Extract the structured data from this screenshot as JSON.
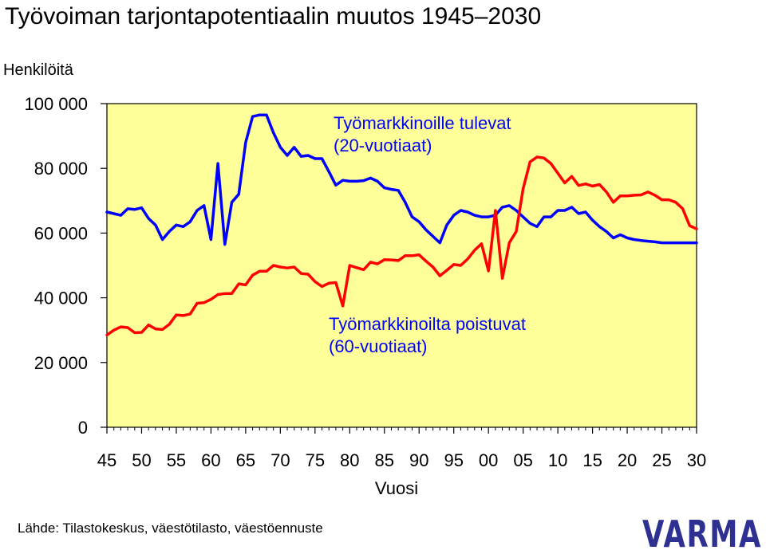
{
  "chart_data": {
    "type": "line",
    "title": "Työvoiman tarjontapotentiaalin muutos 1945–2030",
    "ylabel": "Henkilöitä",
    "xlabel": "Vuosi",
    "ylim": [
      0,
      100000
    ],
    "xlim": [
      1945,
      2030
    ],
    "y_ticks": [
      0,
      20000,
      40000,
      60000,
      80000,
      100000
    ],
    "y_tick_labels": [
      "0",
      "20 000",
      "40 000",
      "60 000",
      "80 000",
      "100 000"
    ],
    "x_ticks": [
      1945,
      1950,
      1955,
      1960,
      1965,
      1970,
      1975,
      1980,
      1985,
      1990,
      1995,
      2000,
      2005,
      2010,
      2015,
      2020,
      2025,
      2030
    ],
    "x_tick_labels": [
      "45",
      "50",
      "55",
      "60",
      "65",
      "70",
      "75",
      "80",
      "85",
      "90",
      "95",
      "00",
      "05",
      "10",
      "15",
      "20",
      "25",
      "30"
    ],
    "grid": false,
    "plot_background": "#FFFF99",
    "series": [
      {
        "name": "Työmarkkinoille tulevat (20-vuotiaat)",
        "label_lines": [
          "Työmarkkinoille tulevat",
          "(20-vuotiaat)"
        ],
        "color": "#0000FF",
        "label_color": "#0000FF",
        "label_position": "top-right",
        "x": [
          1945,
          1946,
          1947,
          1948,
          1949,
          1950,
          1951,
          1952,
          1953,
          1954,
          1955,
          1956,
          1957,
          1958,
          1959,
          1960,
          1961,
          1962,
          1963,
          1964,
          1965,
          1966,
          1967,
          1968,
          1969,
          1970,
          1971,
          1972,
          1973,
          1974,
          1975,
          1976,
          1977,
          1978,
          1979,
          1980,
          1981,
          1982,
          1983,
          1984,
          1985,
          1986,
          1987,
          1988,
          1989,
          1990,
          1991,
          1992,
          1993,
          1994,
          1995,
          1996,
          1997,
          1998,
          1999,
          2000,
          2001,
          2002,
          2003,
          2004,
          2005,
          2006,
          2007,
          2008,
          2009,
          2010,
          2011,
          2012,
          2013,
          2014,
          2015,
          2016,
          2017,
          2018,
          2019,
          2020,
          2021,
          2022,
          2023,
          2024,
          2025,
          2026,
          2027,
          2028,
          2029,
          2030
        ],
        "values": [
          66500,
          66000,
          65500,
          67500,
          67300,
          67800,
          64500,
          62500,
          58000,
          60500,
          62500,
          62000,
          63500,
          67000,
          68500,
          58000,
          81500,
          56500,
          69500,
          72000,
          88000,
          96000,
          96500,
          96500,
          91000,
          86500,
          84000,
          86500,
          83700,
          84000,
          83000,
          83000,
          79000,
          74800,
          76300,
          76000,
          76000,
          76200,
          77000,
          76000,
          74000,
          73500,
          73200,
          69500,
          65000,
          63500,
          61000,
          59000,
          57000,
          62500,
          65500,
          67000,
          66500,
          65500,
          65000,
          65000,
          65500,
          68000,
          68500,
          67000,
          65000,
          63000,
          62000,
          65000,
          65000,
          67000,
          67000,
          68000,
          66000,
          66500,
          64000,
          62000,
          60500,
          58500,
          59500,
          58500,
          58000,
          57700,
          57500,
          57300,
          57000,
          57000,
          57000,
          57000,
          57000,
          57000
        ]
      },
      {
        "name": "Työmarkkinoilta poistuvat (60-vuotiaat)",
        "label_lines": [
          "Työmarkkinoilta poistuvat",
          "(60-vuotiaat)"
        ],
        "color": "#FF0000",
        "label_color": "#0000FF",
        "label_position": "center",
        "x": [
          1945,
          1946,
          1947,
          1948,
          1949,
          1950,
          1951,
          1952,
          1953,
          1954,
          1955,
          1956,
          1957,
          1958,
          1959,
          1960,
          1961,
          1962,
          1963,
          1964,
          1965,
          1966,
          1967,
          1968,
          1969,
          1970,
          1971,
          1972,
          1973,
          1974,
          1975,
          1976,
          1977,
          1978,
          1979,
          1980,
          1981,
          1982,
          1983,
          1984,
          1985,
          1986,
          1987,
          1988,
          1989,
          1990,
          1991,
          1992,
          1993,
          1994,
          1995,
          1996,
          1997,
          1998,
          1999,
          2000,
          2001,
          2002,
          2003,
          2004,
          2005,
          2006,
          2007,
          2008,
          2009,
          2010,
          2011,
          2012,
          2013,
          2014,
          2015,
          2016,
          2017,
          2018,
          2019,
          2020,
          2021,
          2022,
          2023,
          2024,
          2025,
          2026,
          2027,
          2028,
          2029,
          2030
        ],
        "values": [
          28500,
          30000,
          31000,
          30800,
          29200,
          29300,
          31600,
          30400,
          30200,
          31800,
          34700,
          34500,
          35000,
          38300,
          38500,
          39500,
          41000,
          41300,
          41300,
          44300,
          44000,
          47000,
          48200,
          48200,
          50000,
          49500,
          49200,
          49500,
          47500,
          47300,
          45000,
          43500,
          44500,
          44700,
          37500,
          50000,
          49300,
          48700,
          51000,
          50500,
          51800,
          51700,
          51500,
          53000,
          53000,
          53300,
          51300,
          49500,
          46800,
          48500,
          50300,
          50000,
          52000,
          54700,
          56700,
          48300,
          67000,
          46000,
          57000,
          60500,
          73700,
          82000,
          83500,
          83200,
          81500,
          78500,
          75500,
          77500,
          74700,
          75200,
          74500,
          75000,
          72700,
          69500,
          71500,
          71500,
          71700,
          71800,
          72700,
          71700,
          70300,
          70300,
          69500,
          67500,
          62300,
          61300
        ]
      }
    ]
  },
  "source_note": "Lähde: Tilastokeskus, väestötilasto, väestöennuste",
  "logo": {
    "text": "VARMA",
    "color": "#2E3192"
  }
}
